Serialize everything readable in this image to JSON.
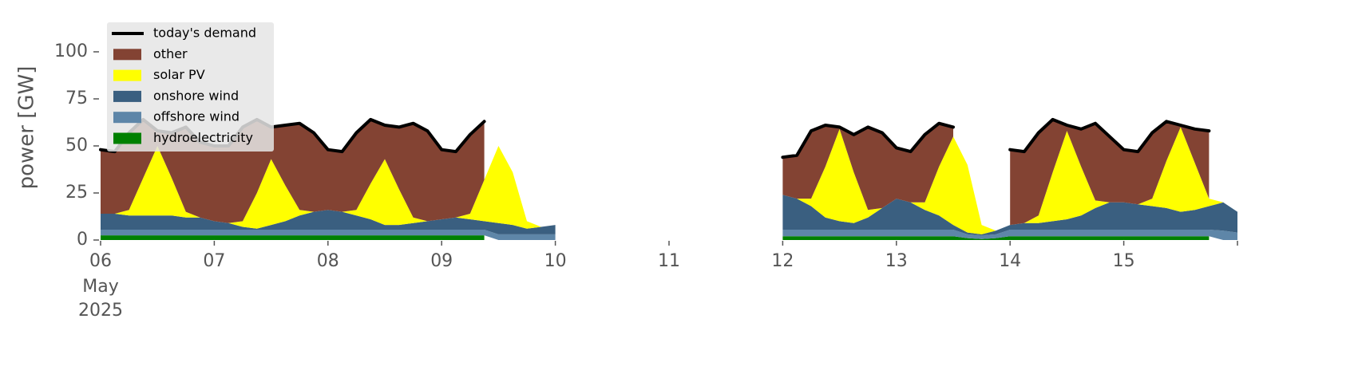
{
  "chart_data": {
    "type": "area",
    "ylabel": "power [GW]",
    "ylim": [
      0,
      118
    ],
    "yticks": [
      0,
      25,
      50,
      75,
      100
    ],
    "xlim": [
      "2025-05-06T00:00",
      "2025-05-16T00:00"
    ],
    "xticks": [
      {
        "value": "2025-05-06",
        "label": "06"
      },
      {
        "value": "2025-05-07",
        "label": "07"
      },
      {
        "value": "2025-05-08",
        "label": "08"
      },
      {
        "value": "2025-05-09",
        "label": "09"
      },
      {
        "value": "2025-05-10",
        "label": "10"
      },
      {
        "value": "2025-05-11",
        "label": "11"
      },
      {
        "value": "2025-05-12",
        "label": "12"
      },
      {
        "value": "2025-05-13",
        "label": "13"
      },
      {
        "value": "2025-05-14",
        "label": "14"
      },
      {
        "value": "2025-05-15",
        "label": "15"
      },
      {
        "value": "2025-05-16",
        "label": null
      }
    ],
    "x_sublabels": [
      "May",
      "2025"
    ],
    "legend": "upper left",
    "x": [
      "2025-05-06T00:00",
      "2025-05-06T03:00",
      "2025-05-06T06:00",
      "2025-05-06T09:00",
      "2025-05-06T12:00",
      "2025-05-06T15:00",
      "2025-05-06T18:00",
      "2025-05-06T21:00",
      "2025-05-07T00:00",
      "2025-05-07T03:00",
      "2025-05-07T06:00",
      "2025-05-07T09:00",
      "2025-05-07T12:00",
      "2025-05-07T15:00",
      "2025-05-07T18:00",
      "2025-05-07T21:00",
      "2025-05-08T00:00",
      "2025-05-08T03:00",
      "2025-05-08T06:00",
      "2025-05-08T09:00",
      "2025-05-08T12:00",
      "2025-05-08T15:00",
      "2025-05-08T18:00",
      "2025-05-08T21:00",
      "2025-05-09T00:00",
      "2025-05-09T03:00",
      "2025-05-09T06:00",
      "2025-05-09T09:00",
      "2025-05-09T12:00",
      "2025-05-09T15:00",
      "2025-05-09T18:00",
      "2025-05-09T21:00",
      "2025-05-10T00:00",
      "2025-05-10T03:00",
      "2025-05-10T06:00",
      "2025-05-10T09:00",
      "2025-05-10T12:00",
      "2025-05-10T15:00",
      "2025-05-10T18:00",
      "2025-05-10T21:00",
      "2025-05-11T00:00",
      "2025-05-11T03:00",
      "2025-05-11T06:00",
      "2025-05-11T09:00",
      "2025-05-11T12:00",
      "2025-05-11T15:00",
      "2025-05-11T18:00",
      "2025-05-11T21:00",
      "2025-05-12T00:00",
      "2025-05-12T03:00",
      "2025-05-12T06:00",
      "2025-05-12T09:00",
      "2025-05-12T12:00",
      "2025-05-12T15:00",
      "2025-05-12T18:00",
      "2025-05-12T21:00",
      "2025-05-13T00:00",
      "2025-05-13T03:00",
      "2025-05-13T06:00",
      "2025-05-13T09:00",
      "2025-05-13T12:00",
      "2025-05-13T15:00",
      "2025-05-13T18:00",
      "2025-05-13T21:00",
      "2025-05-14T00:00",
      "2025-05-14T03:00",
      "2025-05-14T06:00",
      "2025-05-14T09:00",
      "2025-05-14T12:00",
      "2025-05-14T15:00",
      "2025-05-14T18:00",
      "2025-05-14T21:00",
      "2025-05-15T00:00",
      "2025-05-15T03:00",
      "2025-05-15T06:00",
      "2025-05-15T09:00",
      "2025-05-15T12:00",
      "2025-05-15T15:00",
      "2025-05-15T18:00",
      "2025-05-15T21:00",
      "2025-05-16T00:00"
    ],
    "line": {
      "name": "today's demand",
      "color": "#000000",
      "values": [
        48,
        47,
        57,
        64,
        58,
        57,
        60,
        52,
        50,
        50,
        60,
        64,
        60,
        61,
        62,
        57,
        48,
        47,
        57,
        64,
        61,
        60,
        62,
        58,
        48,
        47,
        56,
        63,
        null,
        null,
        null,
        null,
        null,
        null,
        null,
        null,
        null,
        null,
        null,
        null,
        null,
        null,
        null,
        null,
        null,
        null,
        null,
        null,
        44,
        45,
        58,
        61,
        60,
        56,
        60,
        57,
        49,
        47,
        56,
        62,
        60,
        null,
        null,
        null,
        48,
        47,
        57,
        64,
        61,
        59,
        62,
        55,
        48,
        47,
        57,
        63,
        61,
        59,
        58,
        null,
        null
      ]
    },
    "series": [
      {
        "name": "other",
        "color": "#834333",
        "values": [
          34,
          33,
          41,
          31,
          8,
          24,
          45,
          40,
          40,
          41,
          50,
          39,
          17,
          32,
          46,
          42,
          32,
          32,
          41,
          34,
          18,
          33,
          50,
          48,
          37,
          35,
          42,
          31,
          null,
          null,
          null,
          null,
          null,
          null,
          null,
          null,
          null,
          null,
          null,
          null,
          null,
          null,
          null,
          null,
          null,
          null,
          null,
          null,
          20,
          23,
          36,
          22,
          1,
          20,
          44,
          40,
          27,
          27,
          36,
          23,
          5,
          null,
          null,
          null,
          40,
          38,
          44,
          28,
          3,
          20,
          41,
          35,
          28,
          28,
          35,
          21,
          1,
          18,
          36,
          null,
          null
        ]
      },
      {
        "name": "solar PV",
        "color": "#ffff00",
        "values": [
          0,
          0,
          3,
          20,
          37,
          20,
          3,
          0,
          0,
          0,
          3,
          19,
          35,
          19,
          3,
          0,
          0,
          0,
          3,
          19,
          35,
          19,
          3,
          0,
          0,
          0,
          3,
          22,
          41,
          28,
          4,
          0,
          null,
          null,
          null,
          null,
          null,
          null,
          null,
          null,
          null,
          null,
          null,
          null,
          null,
          null,
          null,
          null,
          0,
          0,
          4,
          27,
          49,
          27,
          4,
          0,
          0,
          0,
          4,
          26,
          47,
          36,
          5,
          0,
          0,
          0,
          4,
          26,
          47,
          26,
          4,
          0,
          0,
          0,
          4,
          25,
          45,
          25,
          4,
          0,
          null
        ]
      },
      {
        "name": "onshore wind",
        "color": "#3a5f80",
        "values": [
          8.5,
          8.5,
          7.5,
          7.5,
          7.5,
          7.5,
          6.5,
          6.5,
          4.5,
          3.5,
          1.5,
          0.5,
          2.5,
          4.5,
          7.5,
          9.5,
          10.5,
          9.5,
          7.5,
          5.5,
          2.5,
          2.5,
          3.5,
          4.5,
          5.5,
          6.5,
          5.5,
          4.5,
          6,
          5,
          3,
          4,
          5,
          null,
          null,
          null,
          null,
          null,
          null,
          null,
          null,
          null,
          null,
          null,
          null,
          null,
          null,
          null,
          18.5,
          16.5,
          12.5,
          6.5,
          4.5,
          3.5,
          6.5,
          11.5,
          16.5,
          14.5,
          10.5,
          7.5,
          2.5,
          1,
          0.5,
          2,
          2.5,
          3.5,
          3.5,
          4.5,
          5.5,
          7.5,
          11.5,
          14.5,
          14.5,
          13.5,
          12.5,
          11.5,
          9.5,
          10.5,
          12.5,
          15,
          11
        ]
      },
      {
        "name": "offshore wind",
        "color": "#5e86a8",
        "values": [
          3,
          3,
          3,
          3,
          3,
          3,
          3,
          3,
          3,
          3,
          3,
          3,
          3,
          3,
          3,
          3,
          3,
          3,
          3,
          3,
          3,
          3,
          3,
          3,
          3,
          3,
          3,
          3,
          3,
          3,
          3,
          3,
          3,
          null,
          null,
          null,
          null,
          null,
          null,
          null,
          null,
          null,
          null,
          null,
          null,
          null,
          null,
          null,
          3.5,
          3.5,
          3.5,
          3.5,
          3.5,
          3.5,
          3.5,
          3.5,
          3.5,
          3.5,
          3.5,
          3.5,
          3.5,
          2,
          2,
          2,
          3.5,
          3.5,
          3.5,
          3.5,
          3.5,
          3.5,
          3.5,
          3.5,
          3.5,
          3.5,
          3.5,
          3.5,
          3.5,
          3.5,
          3.5,
          5,
          4
        ]
      },
      {
        "name": "hydroelectricity",
        "color": "#008000",
        "values": [
          2.5,
          2.5,
          2.5,
          2.5,
          2.5,
          2.5,
          2.5,
          2.5,
          2.5,
          2.5,
          2.5,
          2.5,
          2.5,
          2.5,
          2.5,
          2.5,
          2.5,
          2.5,
          2.5,
          2.5,
          2.5,
          2.5,
          2.5,
          2.5,
          2.5,
          2.5,
          2.5,
          2.5,
          null,
          null,
          null,
          null,
          null,
          null,
          null,
          null,
          null,
          null,
          null,
          null,
          null,
          null,
          null,
          null,
          null,
          null,
          null,
          null,
          2,
          2,
          2,
          2,
          2,
          2,
          2,
          2,
          2,
          2,
          2,
          2,
          2,
          1,
          0.5,
          1,
          2,
          2,
          2,
          2,
          2,
          2,
          2,
          2,
          2,
          2,
          2,
          2,
          2,
          2,
          2,
          null,
          null
        ]
      }
    ]
  }
}
